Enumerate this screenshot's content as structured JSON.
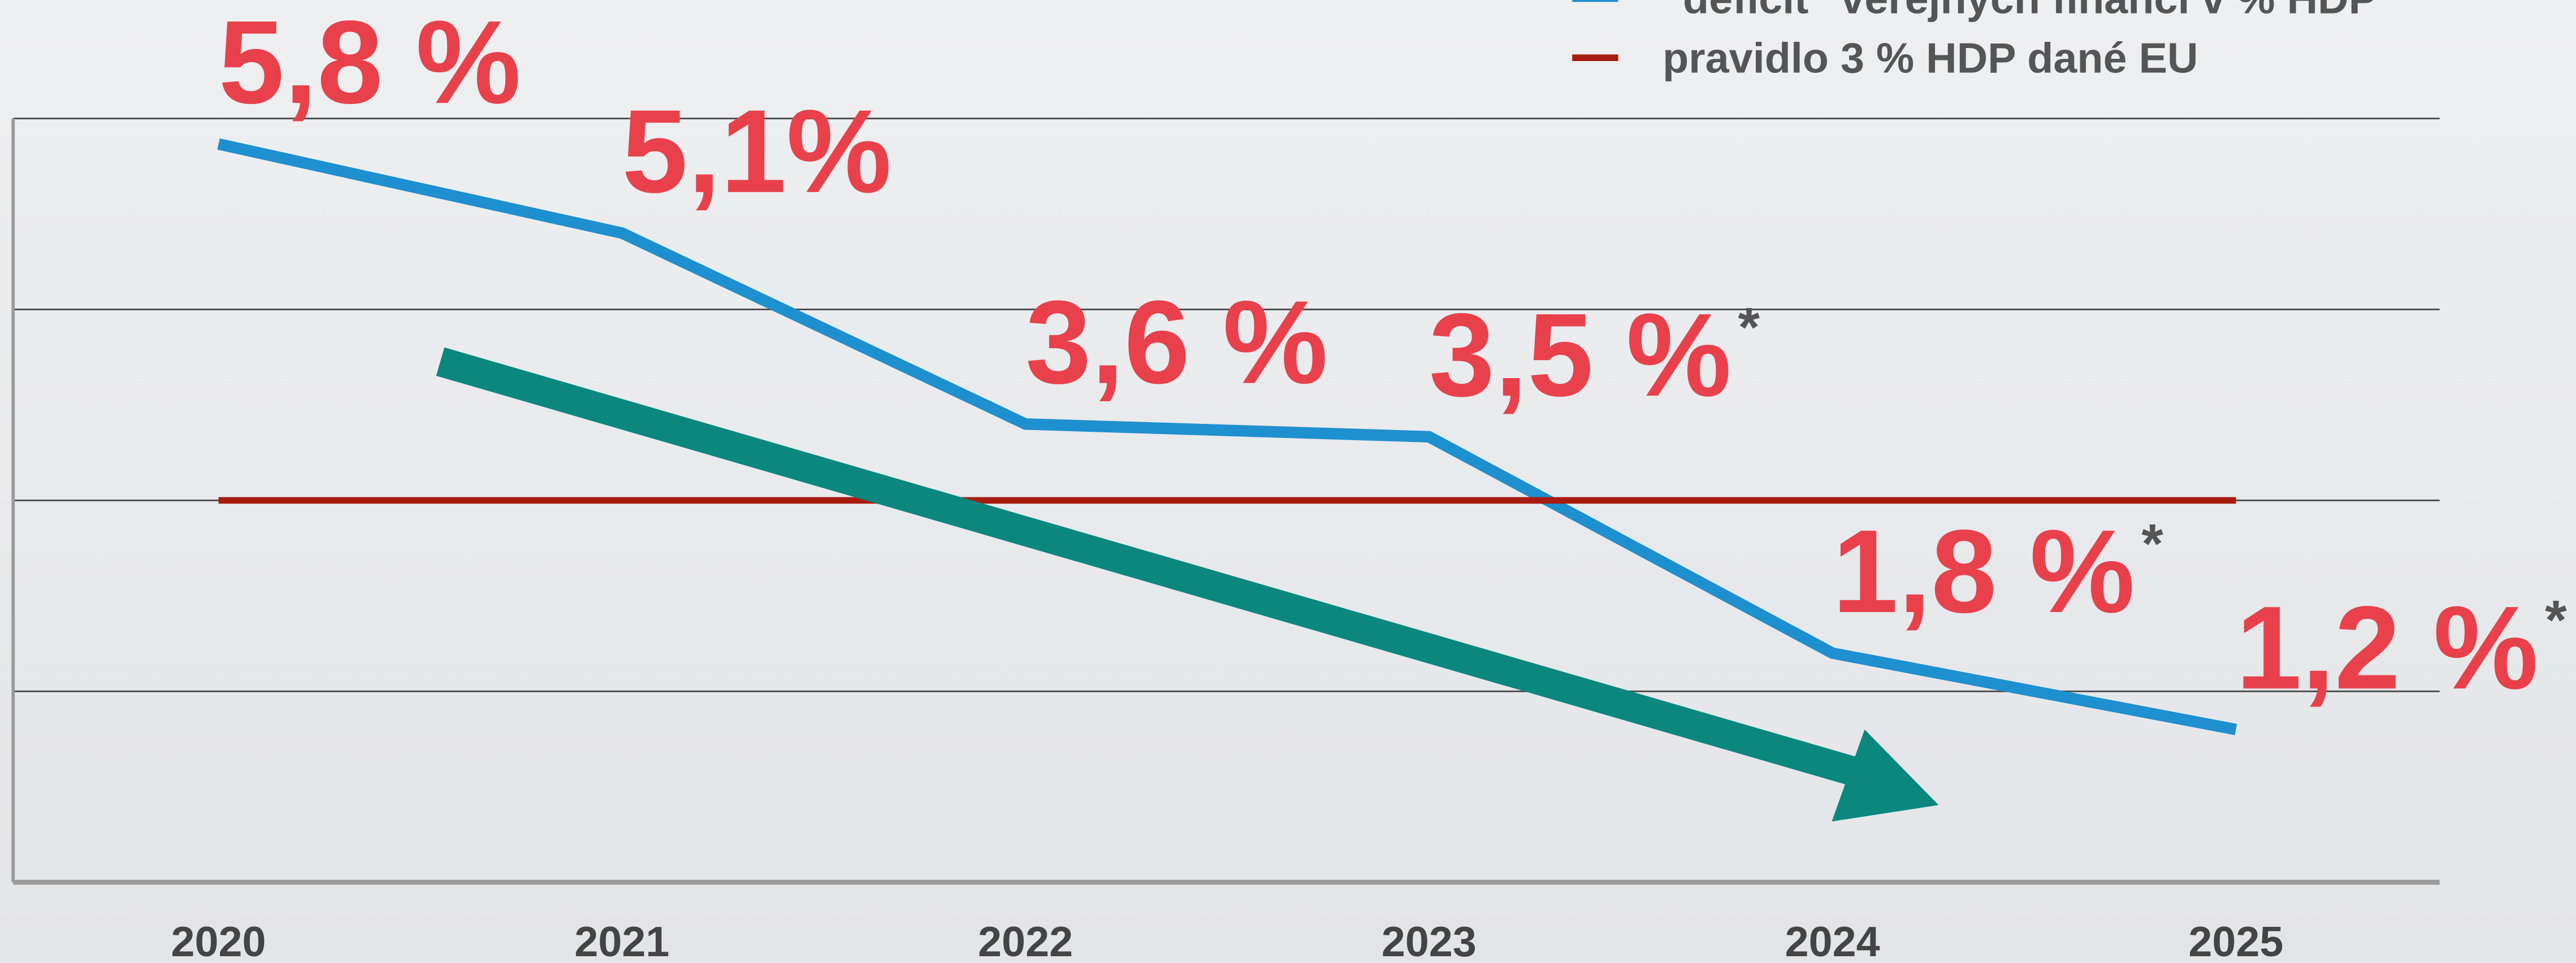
{
  "chart_data": {
    "type": "line",
    "categories": [
      "2020",
      "2021",
      "2022",
      "2023",
      "2024",
      "2025"
    ],
    "series": [
      {
        "name": "\"deficit\" veřejných financí v % HDP",
        "color": "#1e8fcf",
        "values": [
          5.8,
          5.1,
          3.6,
          3.5,
          1.8,
          1.2
        ],
        "value_labels": [
          "5,8 %",
          "5,1%",
          "3,6 %",
          "3,5 %",
          "1,8 %",
          "1,2 %"
        ],
        "label_marks": [
          null,
          null,
          null,
          "*",
          "*",
          "*"
        ]
      },
      {
        "name": "pravidlo 3 % HDP dané EU",
        "color": "#a81c10",
        "values": [
          3,
          3,
          3,
          3,
          3,
          3
        ]
      }
    ],
    "ylim": [
      0,
      6
    ],
    "yticks": [
      0,
      1.5,
      3,
      4.5,
      6
    ],
    "grid": true,
    "label_color": "#e8414b"
  }
}
